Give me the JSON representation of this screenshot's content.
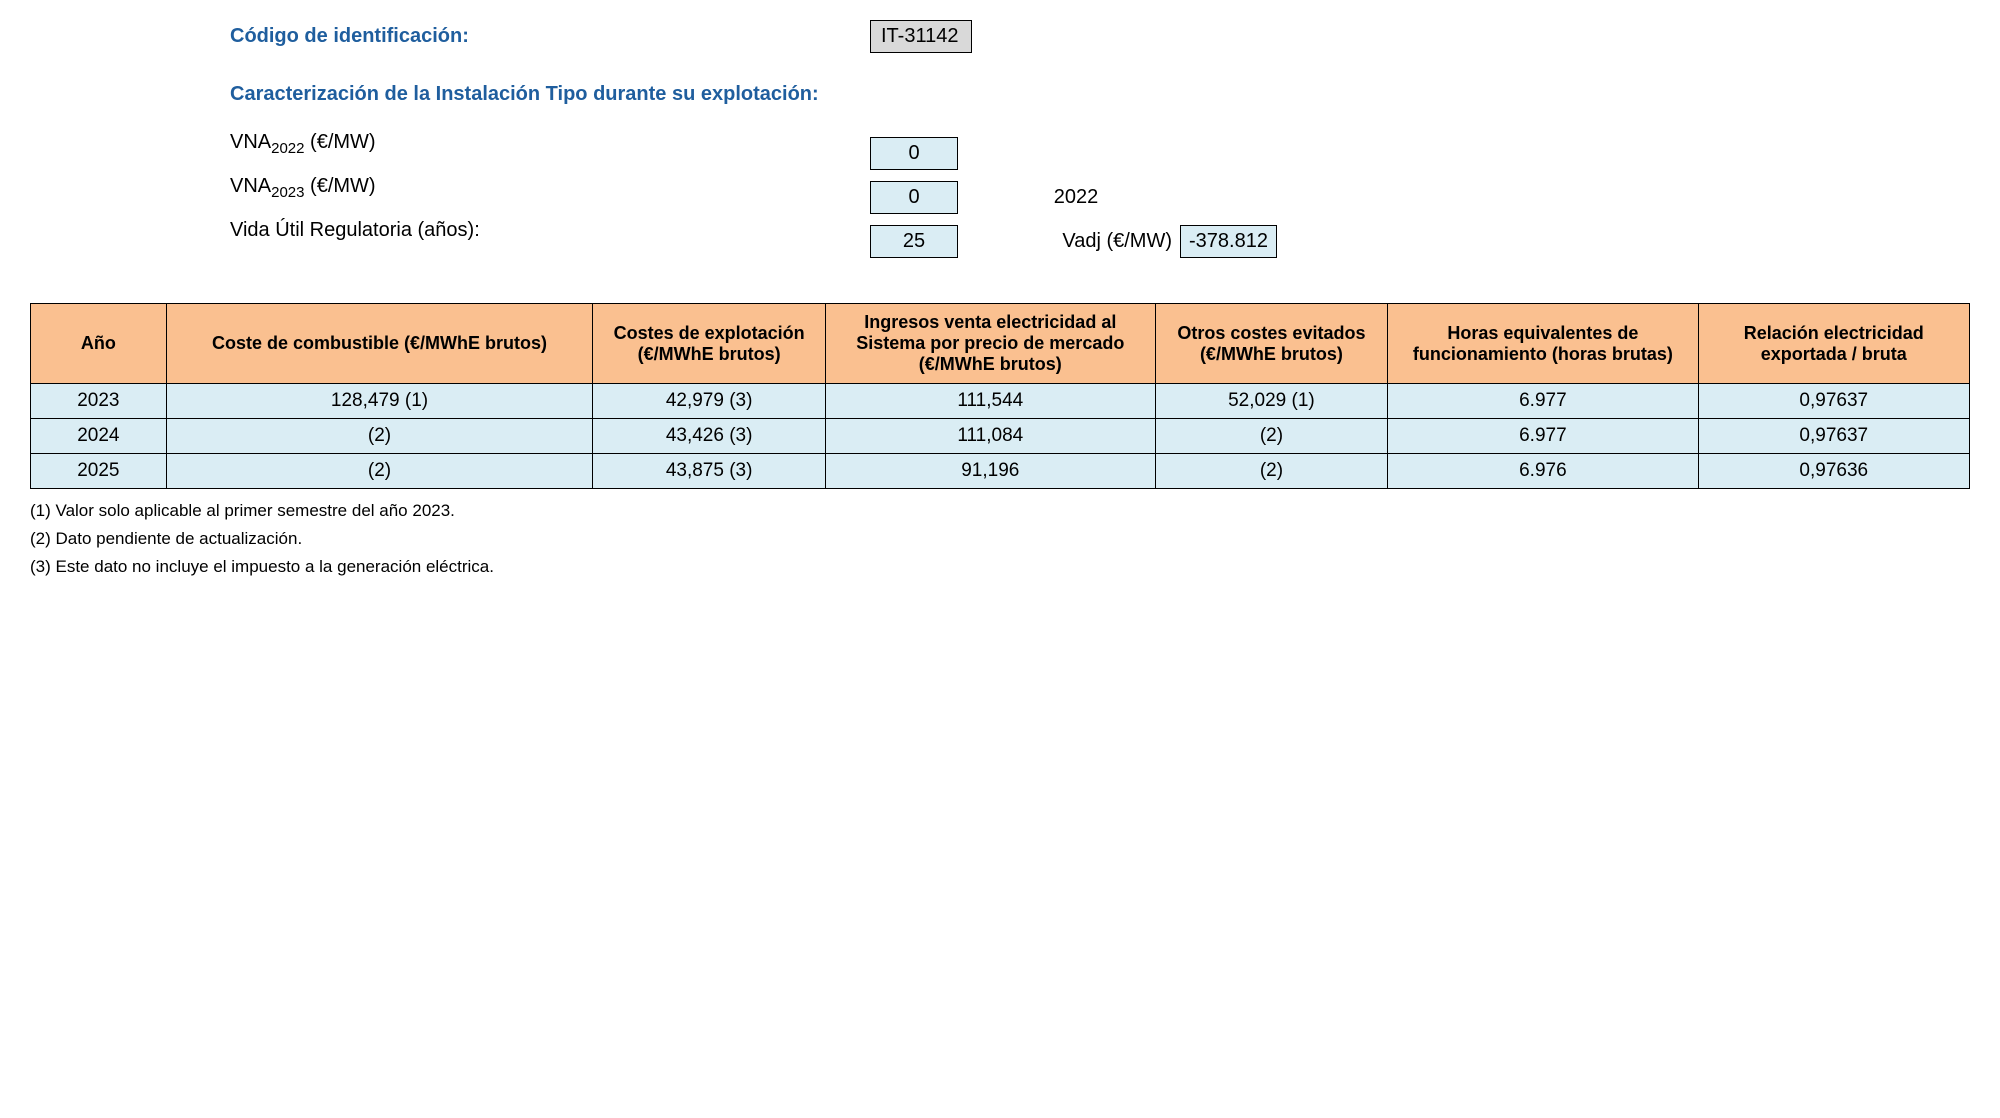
{
  "header": {
    "code_label": "Código de identificación:",
    "code_value": "IT-31142",
    "section_title": "Caracterización de la Instalación Tipo durante su explotación:"
  },
  "params": {
    "vna2022_label_prefix": "VNA",
    "vna2022_sub": "2022",
    "vna2022_label_suffix": " (€/MW)",
    "vna2022_value": "0",
    "vna2023_label_prefix": "VNA",
    "vna2023_sub": "2023",
    "vna2023_label_suffix": " (€/MW)",
    "vna2023_value": "0",
    "year_right": "2022",
    "vida_label": "Vida Útil Regulatoria (años):",
    "vida_value": "25",
    "vadj_label": "Vadj (€/MW)",
    "vadj_value": "-378.812"
  },
  "table": {
    "columns": [
      "Año",
      "Coste de combustible (€/MWhE brutos)",
      "Costes de explotación (€/MWhE brutos)",
      "Ingresos venta electricidad al Sistema por precio de mercado (€/MWhE brutos)",
      "Otros costes evitados (€/MWhE brutos)",
      "Horas equivalentes de funcionamiento (horas brutas)",
      "Relación electricidad exportada / bruta"
    ],
    "col_widths": [
      "7%",
      "22%",
      "12%",
      "17%",
      "12%",
      "16%",
      "14%"
    ],
    "rows": [
      [
        "2023",
        "128,479 (1)",
        "42,979 (3)",
        "111,544",
        "52,029 (1)",
        "6.977",
        "0,97637"
      ],
      [
        "2024",
        "(2)",
        "43,426 (3)",
        "111,084",
        "(2)",
        "6.977",
        "0,97637"
      ],
      [
        "2025",
        "(2)",
        "43,875 (3)",
        "91,196",
        "(2)",
        "6.976",
        "0,97636"
      ]
    ]
  },
  "footnotes": [
    "(1) Valor solo aplicable al primer semestre del año 2023.",
    "(2) Dato pendiente de actualización.",
    "(3) Este dato no incluye el impuesto a la generación eléctrica."
  ],
  "colors": {
    "header_bg": "#fac090",
    "cell_bg": "#daedf4",
    "code_bg": "#d9d9d9",
    "title_color": "#1f5e9e"
  }
}
